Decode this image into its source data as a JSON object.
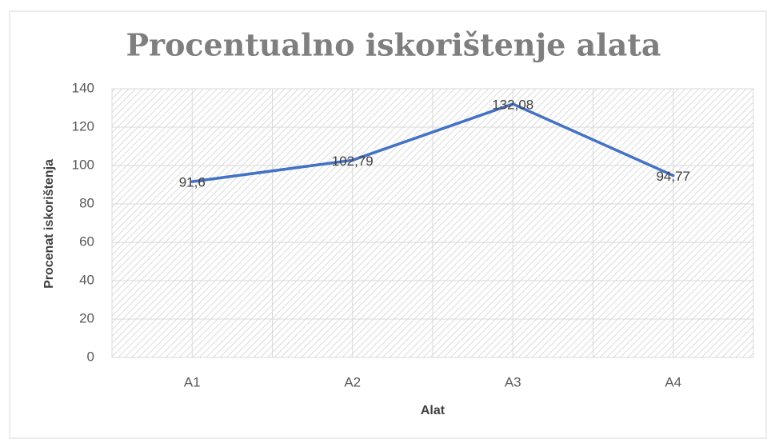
{
  "chart_data": {
    "type": "line",
    "title": "Procentualno iskorištenje alata",
    "x_label": "Alat",
    "y_label": "Procenat iskorištenja",
    "categories": [
      "A1",
      "A2",
      "A3",
      "A4"
    ],
    "values": [
      91.6,
      102.79,
      132.08,
      94.77
    ],
    "value_labels": [
      "91,6",
      "102,79",
      "132,08",
      "94,77"
    ],
    "color": "#4472c4",
    "ylim": [
      0,
      140
    ],
    "yticks": [
      0,
      20,
      40,
      60,
      80,
      100,
      120,
      140
    ],
    "grid": true
  }
}
